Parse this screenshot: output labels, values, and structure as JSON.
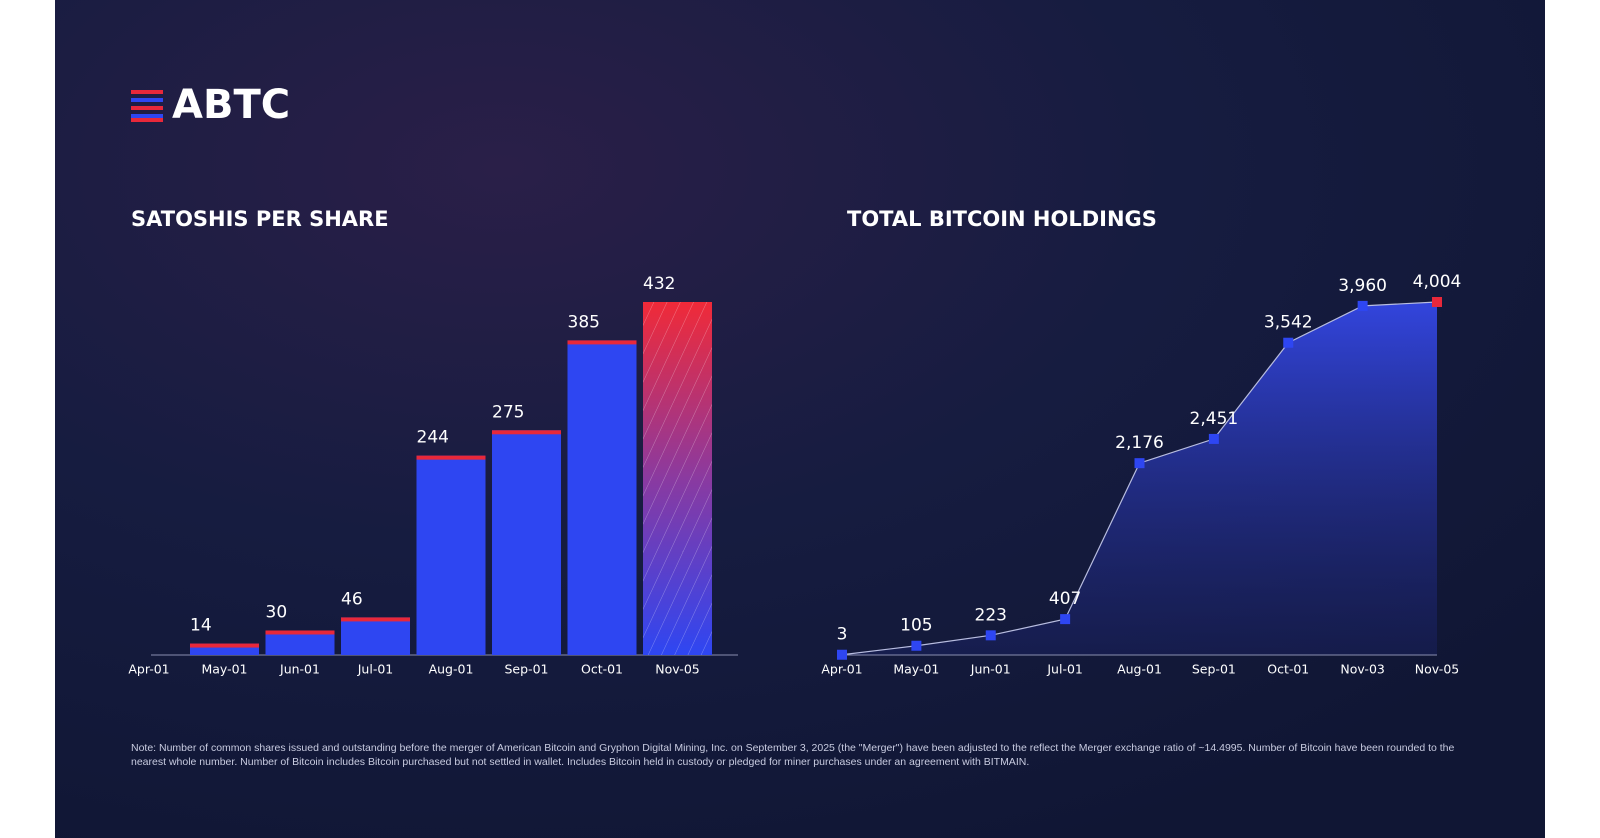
{
  "logo": "ABTC",
  "note": "Note: Number of common shares issued and outstanding before the merger of American Bitcoin and Gryphon Digital Mining, Inc. on September 3, 2025 (the \"Merger\") have been adjusted to the reflect the Merger exchange ratio of ~14.4995. Number of Bitcoin have been rounded to the nearest whole number. Number of Bitcoin includes Bitcoin purchased but not settled in wallet. Includes Bitcoin held in custody or pledged for miner purchases under an agreement with BITMAIN.",
  "chart_data": [
    {
      "type": "bar",
      "title": "SATOSHIS PER SHARE",
      "categories": [
        "Apr-01",
        "May-01",
        "Jun-01",
        "Jul-01",
        "Aug-01",
        "Sep-01",
        "Oct-01",
        "Nov-05"
      ],
      "values": [
        null,
        14,
        30,
        46,
        244,
        275,
        385,
        432
      ],
      "color": "#2e46f2",
      "accent_color": "#e8283a"
    },
    {
      "type": "area",
      "title": "TOTAL BITCOIN HOLDINGS",
      "categories": [
        "Apr-01",
        "May-01",
        "Jun-01",
        "Jul-01",
        "Aug-01",
        "Sep-01",
        "Oct-01",
        "Nov-03",
        "Nov-05"
      ],
      "values": [
        3,
        105,
        223,
        407,
        2176,
        2451,
        3542,
        3960,
        4004
      ],
      "value_labels": [
        "3",
        "105",
        "223",
        "407",
        "2,176",
        "2,451",
        "3,542",
        "3,960",
        "4,004"
      ],
      "color": "#2e46f2",
      "accent_color": "#e8283a"
    }
  ]
}
